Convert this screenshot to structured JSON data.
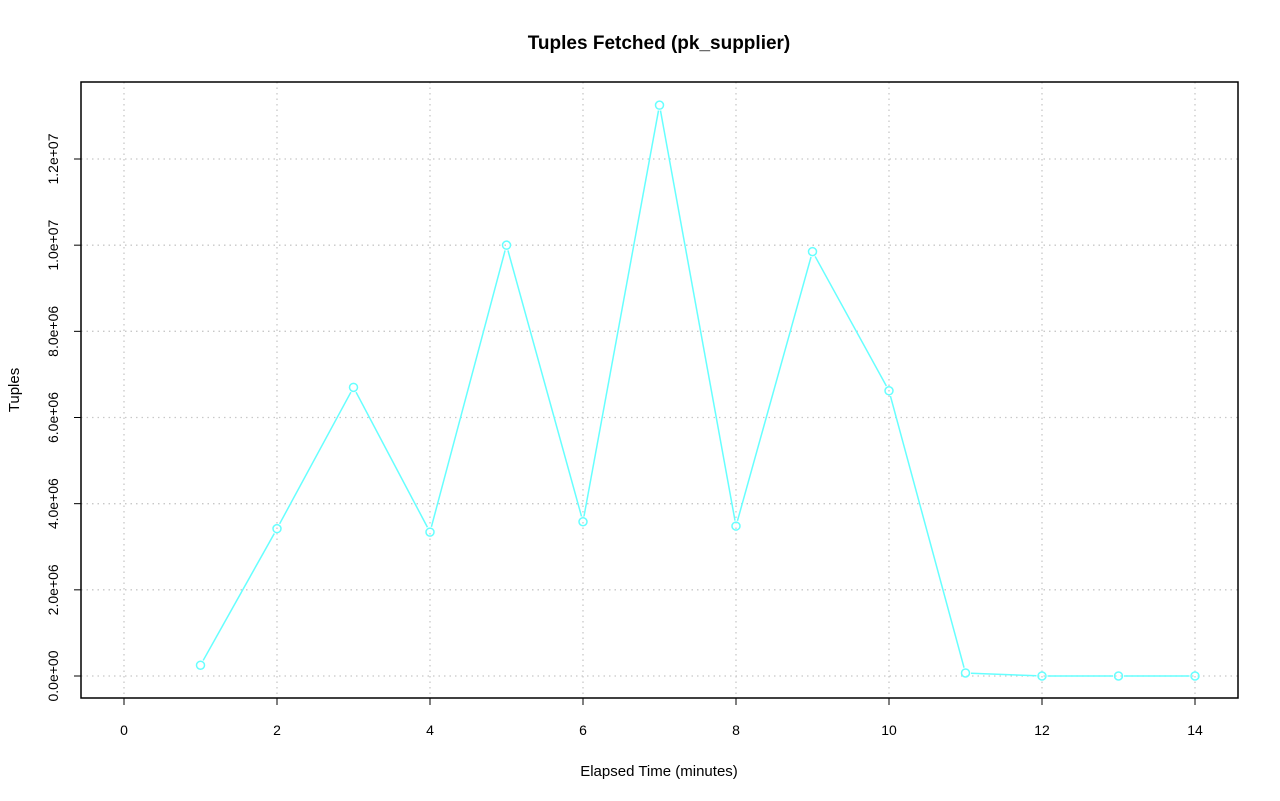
{
  "chart_data": {
    "type": "line",
    "title": "Tuples Fetched (pk_supplier)",
    "xlabel": "Elapsed Time (minutes)",
    "ylabel": "Tuples",
    "xlim": [
      0,
      14
    ],
    "ylim": [
      0,
      13300000
    ],
    "x_ticks": [
      0,
      2,
      4,
      6,
      8,
      10,
      12,
      14
    ],
    "x_tick_labels": [
      "0",
      "2",
      "4",
      "6",
      "8",
      "10",
      "12",
      "14"
    ],
    "y_ticks": [
      0,
      2000000,
      4000000,
      6000000,
      8000000,
      10000000,
      12000000
    ],
    "y_tick_labels": [
      "0.0e+00",
      "2.0e+06",
      "4.0e+06",
      "6.0e+06",
      "8.0e+06",
      "1.0e+07",
      "1.2e+07"
    ],
    "grid": true,
    "series": [
      {
        "color": "#66ffff",
        "marker": "open-circle",
        "x": [
          1,
          2,
          3,
          4,
          5,
          6,
          7,
          8,
          9,
          10,
          11,
          12,
          13,
          14
        ],
        "y": [
          250000,
          3420000,
          6700000,
          3340000,
          10000000,
          3580000,
          13250000,
          3480000,
          9850000,
          6620000,
          70000,
          0,
          0,
          0
        ]
      }
    ]
  }
}
